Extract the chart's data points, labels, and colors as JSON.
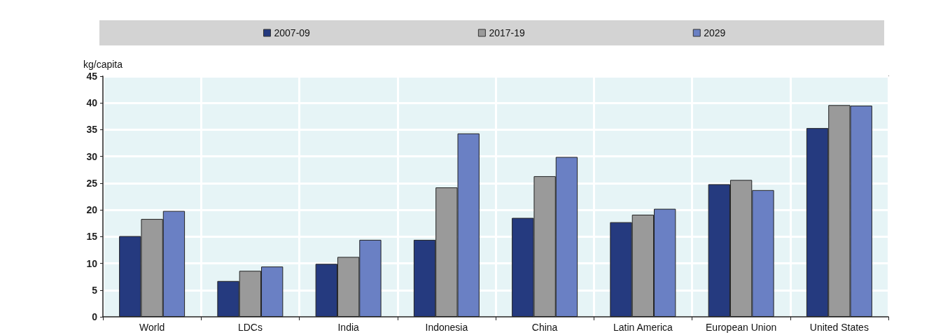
{
  "chart_data": {
    "type": "bar",
    "ylabel": "kg/capita",
    "categories": [
      "World",
      "LDCs",
      "India",
      "Indonesia",
      "China",
      "Latin America",
      "European Union",
      "United States"
    ],
    "series": [
      {
        "name": "2007-09",
        "color": "#253a7f",
        "values": [
          15.1,
          6.7,
          9.9,
          14.4,
          18.5,
          17.7,
          24.8,
          35.3
        ]
      },
      {
        "name": "2017-19",
        "color": "#9a9a9a",
        "values": [
          18.3,
          8.6,
          11.2,
          24.2,
          26.3,
          19.1,
          25.6,
          39.6
        ]
      },
      {
        "name": "2029",
        "color": "#6a80c4",
        "values": [
          19.8,
          9.4,
          14.4,
          34.3,
          29.9,
          20.2,
          23.7,
          39.5
        ]
      }
    ],
    "ylim": [
      0,
      45
    ],
    "yticks": [
      0,
      5,
      10,
      15,
      20,
      25,
      30,
      35,
      40,
      45
    ],
    "grid": true,
    "legend": "top"
  }
}
